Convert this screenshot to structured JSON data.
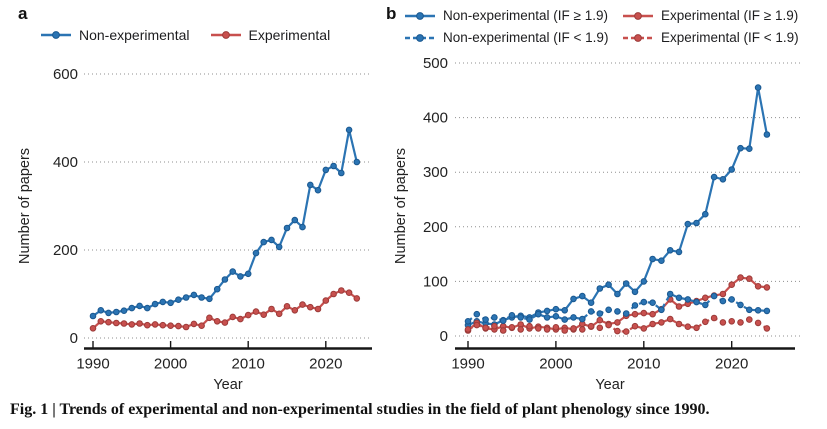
{
  "figure": {
    "caption": "Fig. 1 | Trends of experimental and non-experimental studies in the field of plant phenology since 1990."
  },
  "colors": {
    "blue": "#2b74b3",
    "blue_dark": "#1a5890",
    "red": "#c8504e",
    "red_dark": "#9c3b39",
    "grid": "#8f8f8f",
    "axis": "#161616"
  },
  "chart_data": [
    {
      "id": "a",
      "panel_label": "a",
      "type": "line",
      "title": "",
      "xlabel": "Year",
      "ylabel": "Number of papers",
      "ylim": [
        0,
        600
      ],
      "yticks": [
        0,
        200,
        400,
        600
      ],
      "xticks": [
        1990,
        2000,
        2010,
        2020
      ],
      "grid": "horizontal-dotted",
      "legend_position": "top",
      "x": [
        1990,
        1991,
        1992,
        1993,
        1994,
        1995,
        1996,
        1997,
        1998,
        1999,
        2000,
        2001,
        2002,
        2003,
        2004,
        2005,
        2006,
        2007,
        2008,
        2009,
        2010,
        2011,
        2012,
        2013,
        2014,
        2015,
        2016,
        2017,
        2018,
        2019,
        2020,
        2021,
        2022,
        2023,
        2024
      ],
      "series": [
        {
          "name": "Non-experimental",
          "color": "blue",
          "style": "solid",
          "values": [
            50,
            63,
            57,
            59,
            62,
            68,
            73,
            68,
            77,
            82,
            80,
            87,
            92,
            98,
            92,
            89,
            111,
            133,
            151,
            140,
            146,
            193,
            218,
            223,
            207,
            250,
            268,
            252,
            348,
            336,
            382,
            391,
            375,
            473,
            400
          ]
        },
        {
          "name": "Experimental",
          "color": "red",
          "style": "solid",
          "values": [
            22,
            38,
            36,
            34,
            33,
            31,
            33,
            29,
            31,
            29,
            28,
            27,
            25,
            32,
            28,
            46,
            38,
            35,
            48,
            43,
            52,
            60,
            53,
            66,
            55,
            72,
            63,
            76,
            70,
            66,
            85,
            100,
            108,
            103,
            90
          ]
        }
      ]
    },
    {
      "id": "b",
      "panel_label": "b",
      "type": "line",
      "title": "",
      "xlabel": "Year",
      "ylabel": "Number of papers",
      "ylim": [
        0,
        500
      ],
      "yticks": [
        0,
        100,
        200,
        300,
        400,
        500
      ],
      "xticks": [
        1990,
        2000,
        2010,
        2020
      ],
      "grid": "horizontal-dotted",
      "legend_position": "top",
      "x": [
        1990,
        1991,
        1992,
        1993,
        1994,
        1995,
        1996,
        1997,
        1998,
        1999,
        2000,
        2001,
        2002,
        2003,
        2004,
        2005,
        2006,
        2007,
        2008,
        2009,
        2010,
        2011,
        2012,
        2013,
        2014,
        2015,
        2016,
        2017,
        2018,
        2019,
        2020,
        2021,
        2022,
        2023,
        2024
      ],
      "series": [
        {
          "name": "Non-experimental (IF ≥ 1.9)",
          "color": "blue",
          "style": "solid",
          "values": [
            20,
            27,
            23,
            21,
            29,
            34,
            37,
            34,
            43,
            46,
            49,
            47,
            68,
            73,
            61,
            87,
            94,
            77,
            96,
            81,
            100,
            141,
            138,
            157,
            154,
            205,
            207,
            223,
            291,
            287,
            305,
            344,
            343,
            455,
            369
          ]
        },
        {
          "name": "Experimental (IF ≥ 1.9)",
          "color": "red",
          "style": "solid",
          "values": [
            10,
            24,
            14,
            12,
            18,
            15,
            21,
            14,
            17,
            15,
            12,
            15,
            12,
            22,
            17,
            29,
            22,
            25,
            37,
            40,
            42,
            40,
            49,
            67,
            54,
            59,
            64,
            70,
            74,
            77,
            94,
            107,
            105,
            91,
            89
          ]
        },
        {
          "name": "Non-experimental (IF < 1.9)",
          "color": "blue",
          "style": "dashed",
          "values": [
            27,
            40,
            30,
            34,
            28,
            38,
            34,
            30,
            40,
            34,
            36,
            30,
            34,
            31,
            45,
            41,
            48,
            45,
            41,
            56,
            62,
            61,
            48,
            77,
            70,
            67,
            62,
            57,
            73,
            64,
            67,
            57,
            48,
            47,
            46
          ]
        },
        {
          "name": "Experimental (IF < 1.9)",
          "color": "red",
          "style": "dashed",
          "values": [
            12,
            20,
            15,
            18,
            10,
            16,
            12,
            18,
            14,
            12,
            16,
            10,
            14,
            12,
            18,
            15,
            20,
            9,
            8,
            18,
            14,
            22,
            25,
            31,
            22,
            17,
            15,
            26,
            33,
            25,
            27,
            25,
            30,
            24,
            14
          ]
        }
      ]
    }
  ]
}
